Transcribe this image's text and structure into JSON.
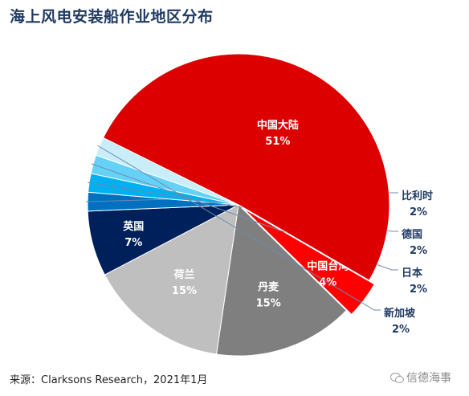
{
  "chart_data": {
    "type": "pie",
    "title": "海上风电安装船作业地区分布",
    "slices": [
      {
        "label": "中国台湾",
        "value": 4,
        "value_label": "4%",
        "color": "#ff0000",
        "label_color": "#ffffff",
        "label_position": "inside"
      },
      {
        "label": "丹麦",
        "value": 15,
        "value_label": "15%",
        "color": "#7f7f7f",
        "label_color": "#ffffff",
        "label_position": "inside"
      },
      {
        "label": "荷兰",
        "value": 15,
        "value_label": "15%",
        "color": "#bfbfbf",
        "label_color": "#ffffff",
        "label_position": "inside"
      },
      {
        "label": "英国",
        "value": 7,
        "value_label": "7%",
        "color": "#00205c",
        "label_color": "#ffffff",
        "label_position": "inside"
      },
      {
        "label": "比利时",
        "value": 2,
        "value_label": "2%",
        "color": "#0070c0",
        "label_color": "#1f3a63",
        "label_position": "outside"
      },
      {
        "label": "德国",
        "value": 2,
        "value_label": "2%",
        "color": "#00b0f0",
        "label_color": "#1f3a63",
        "label_position": "outside"
      },
      {
        "label": "日本",
        "value": 2,
        "value_label": "2%",
        "color": "#66d1f7",
        "label_color": "#1f3a63",
        "label_position": "outside"
      },
      {
        "label": "新加坡",
        "value": 2,
        "value_label": "2%",
        "color": "#c9eef9",
        "label_color": "#1f3a63",
        "label_position": "outside"
      },
      {
        "label": "中国大陆",
        "value": 51,
        "value_label": "51%",
        "color": "#dd0000",
        "label_color": "#ffffff",
        "label_position": "inside"
      }
    ],
    "legend": "none"
  },
  "footer": {
    "source": "来源：Clarksons  Research，2021年1月",
    "watermark": "信德海事"
  },
  "icons": {
    "watermark_icon": "wechat-icon"
  }
}
